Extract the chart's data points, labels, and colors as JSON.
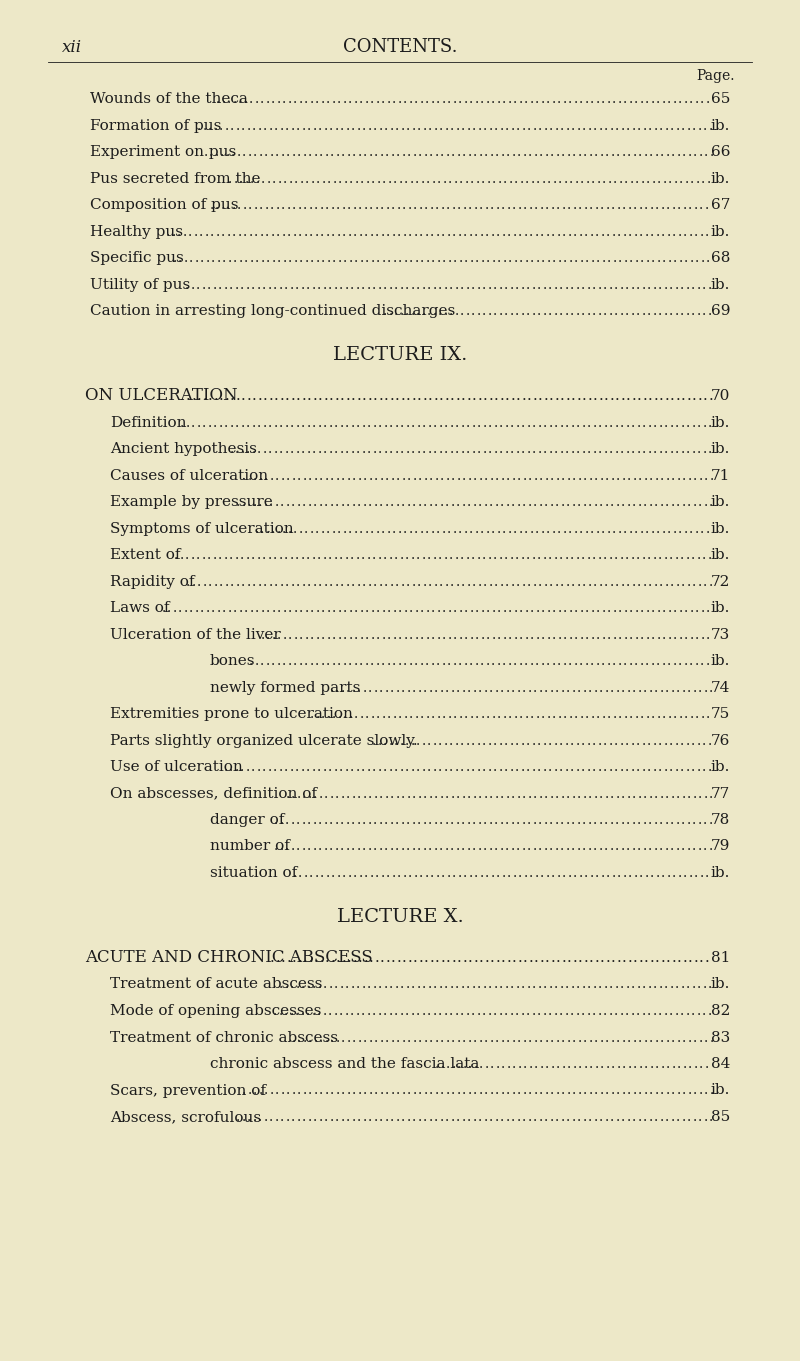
{
  "bg_color": "#ede8c8",
  "text_color": "#1c1c1c",
  "page_header_left": "xii",
  "page_header_center": "CONTENTS.",
  "page_label": "Page.",
  "entries": [
    {
      "text": "Wounds of the theca",
      "indent": 0,
      "page": "65"
    },
    {
      "text": "Formation of pus",
      "indent": 0,
      "page": "ib."
    },
    {
      "text": "Experiment on pus",
      "indent": 0,
      "page": "66"
    },
    {
      "text": "Pus secreted from the",
      "indent": 0,
      "page": "ib."
    },
    {
      "text": "Composition of pus",
      "indent": 0,
      "page": "67"
    },
    {
      "text": "Healthy pus",
      "indent": 0,
      "page": "ib."
    },
    {
      "text": "Specific pus",
      "indent": 0,
      "page": "68"
    },
    {
      "text": "Utility of pus",
      "indent": 0,
      "page": "ib."
    },
    {
      "text": "Caution in arresting long-continued discharges",
      "indent": 0,
      "page": "69"
    },
    {
      "text": "LECTURE IX.",
      "indent": -1,
      "page": "",
      "style": "section_header"
    },
    {
      "text": "ON ULCERATION",
      "indent": -2,
      "page": "70",
      "style": "subsection_header"
    },
    {
      "text": "Definition",
      "indent": 1,
      "page": "ib."
    },
    {
      "text": "Ancient hypothesis",
      "indent": 1,
      "page": "ib."
    },
    {
      "text": "Causes of ulceration",
      "indent": 1,
      "page": "71"
    },
    {
      "text": "Example by pressure",
      "indent": 1,
      "page": "ib."
    },
    {
      "text": "Symptoms of ulceration",
      "indent": 1,
      "page": "ib."
    },
    {
      "text": "Extent of",
      "indent": 1,
      "page": "ib."
    },
    {
      "text": "Rapidity of",
      "indent": 1,
      "page": "72"
    },
    {
      "text": "Laws of",
      "indent": 1,
      "page": "ib."
    },
    {
      "text": "Ulceration of the liver",
      "indent": 1,
      "page": "73"
    },
    {
      "text": "bones",
      "indent": 3,
      "page": "ib."
    },
    {
      "text": "newly formed parts",
      "indent": 3,
      "page": "74"
    },
    {
      "text": "Extremities prone to ulceration",
      "indent": 1,
      "page": "75"
    },
    {
      "text": "Parts slightly organized ulcerate slowly.",
      "indent": 1,
      "page": "76"
    },
    {
      "text": "Use of ulceration",
      "indent": 1,
      "page": "ib."
    },
    {
      "text": "On abscesses, definition of",
      "indent": 1,
      "page": "77"
    },
    {
      "text": "danger of",
      "indent": 3,
      "page": "78"
    },
    {
      "text": "number of",
      "indent": 3,
      "page": "79"
    },
    {
      "text": "situation of",
      "indent": 3,
      "page": "ib."
    },
    {
      "text": "LECTURE X.",
      "indent": -1,
      "page": "",
      "style": "section_header"
    },
    {
      "text": "ACUTE AND CHRONIC ABSCESS",
      "indent": -2,
      "page": "81",
      "style": "subsection_header"
    },
    {
      "text": "Treatment of acute abscess",
      "indent": 1,
      "page": "ib."
    },
    {
      "text": "Mode of opening abscesses",
      "indent": 1,
      "page": "82"
    },
    {
      "text": "Treatment of chronic abscess",
      "indent": 1,
      "page": "83"
    },
    {
      "text": "chronic abscess and the fascia lata",
      "indent": 3,
      "page": "84"
    },
    {
      "text": "Scars, prevention of",
      "indent": 1,
      "page": "ib."
    },
    {
      "text": "Abscess, scrofulous",
      "indent": 1,
      "page": "85"
    }
  ],
  "font_size": 11.0,
  "header_font_size": 14.0,
  "subheader_font_size": 12.0,
  "small_font_size": 10.0
}
